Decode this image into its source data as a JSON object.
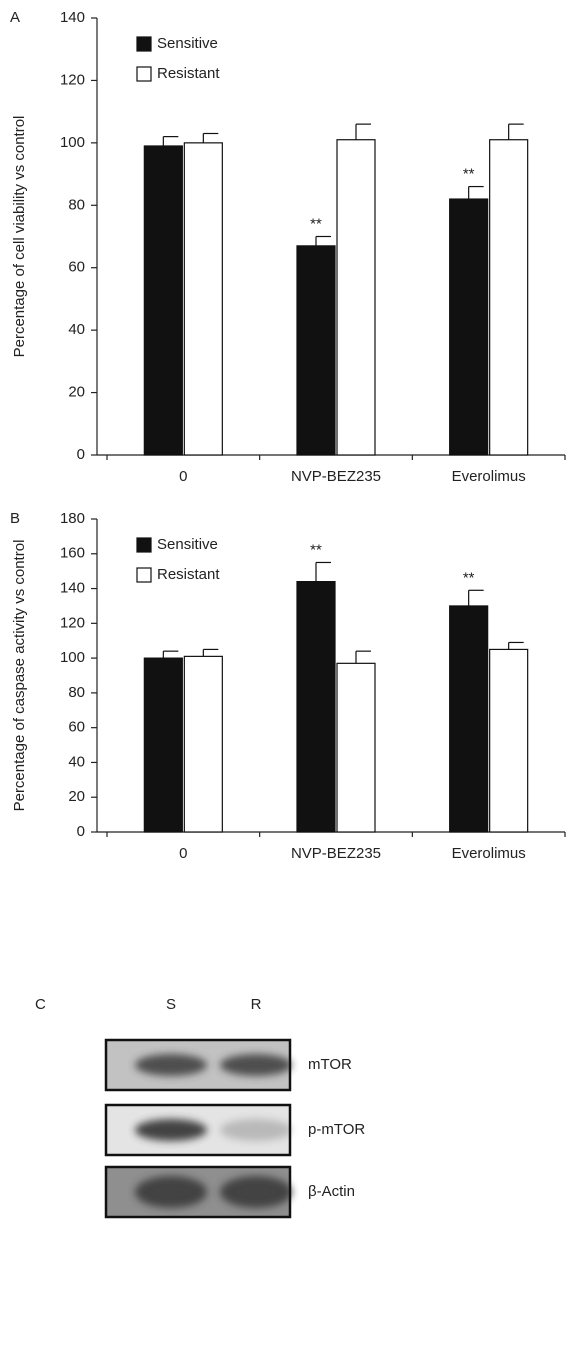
{
  "chart_data": [
    {
      "type": "bar",
      "panel_label": "A",
      "y_label": "Percentage of cell viability vs control",
      "categories": [
        "0",
        "NVP-BEZ235",
        "Everolimus"
      ],
      "series": [
        {
          "name": "Sensitive",
          "color": "#111111",
          "values": [
            99,
            67,
            82
          ],
          "errors": [
            3,
            3,
            4
          ],
          "significance": [
            null,
            "**",
            "**"
          ]
        },
        {
          "name": "Resistant",
          "color": "#ffffff",
          "values": [
            100,
            101,
            101
          ],
          "errors": [
            3,
            5,
            5
          ]
        }
      ],
      "ylim": [
        0,
        140
      ],
      "yticks": [
        0,
        20,
        40,
        60,
        80,
        100,
        120,
        140
      ],
      "legend": "upper-left"
    },
    {
      "type": "bar",
      "panel_label": "B",
      "y_label": "Percentage of caspase activity vs control",
      "categories": [
        "0",
        "NVP-BEZ235",
        "Everolimus"
      ],
      "series": [
        {
          "name": "Sensitive",
          "color": "#111111",
          "values": [
            100,
            144,
            130
          ],
          "errors": [
            4,
            11,
            9
          ],
          "significance": [
            null,
            "**",
            "**"
          ]
        },
        {
          "name": "Resistant",
          "color": "#ffffff",
          "values": [
            101,
            97,
            105
          ],
          "errors": [
            4,
            7,
            4
          ]
        }
      ],
      "ylim": [
        0,
        180
      ],
      "yticks": [
        0,
        20,
        40,
        60,
        80,
        100,
        120,
        140,
        160,
        180
      ],
      "legend": "upper-left"
    }
  ],
  "blot": {
    "panel_label": "C",
    "lanes": [
      "S",
      "R"
    ],
    "rows": [
      "mTOR",
      "p-mTOR",
      "β-Actin"
    ]
  }
}
